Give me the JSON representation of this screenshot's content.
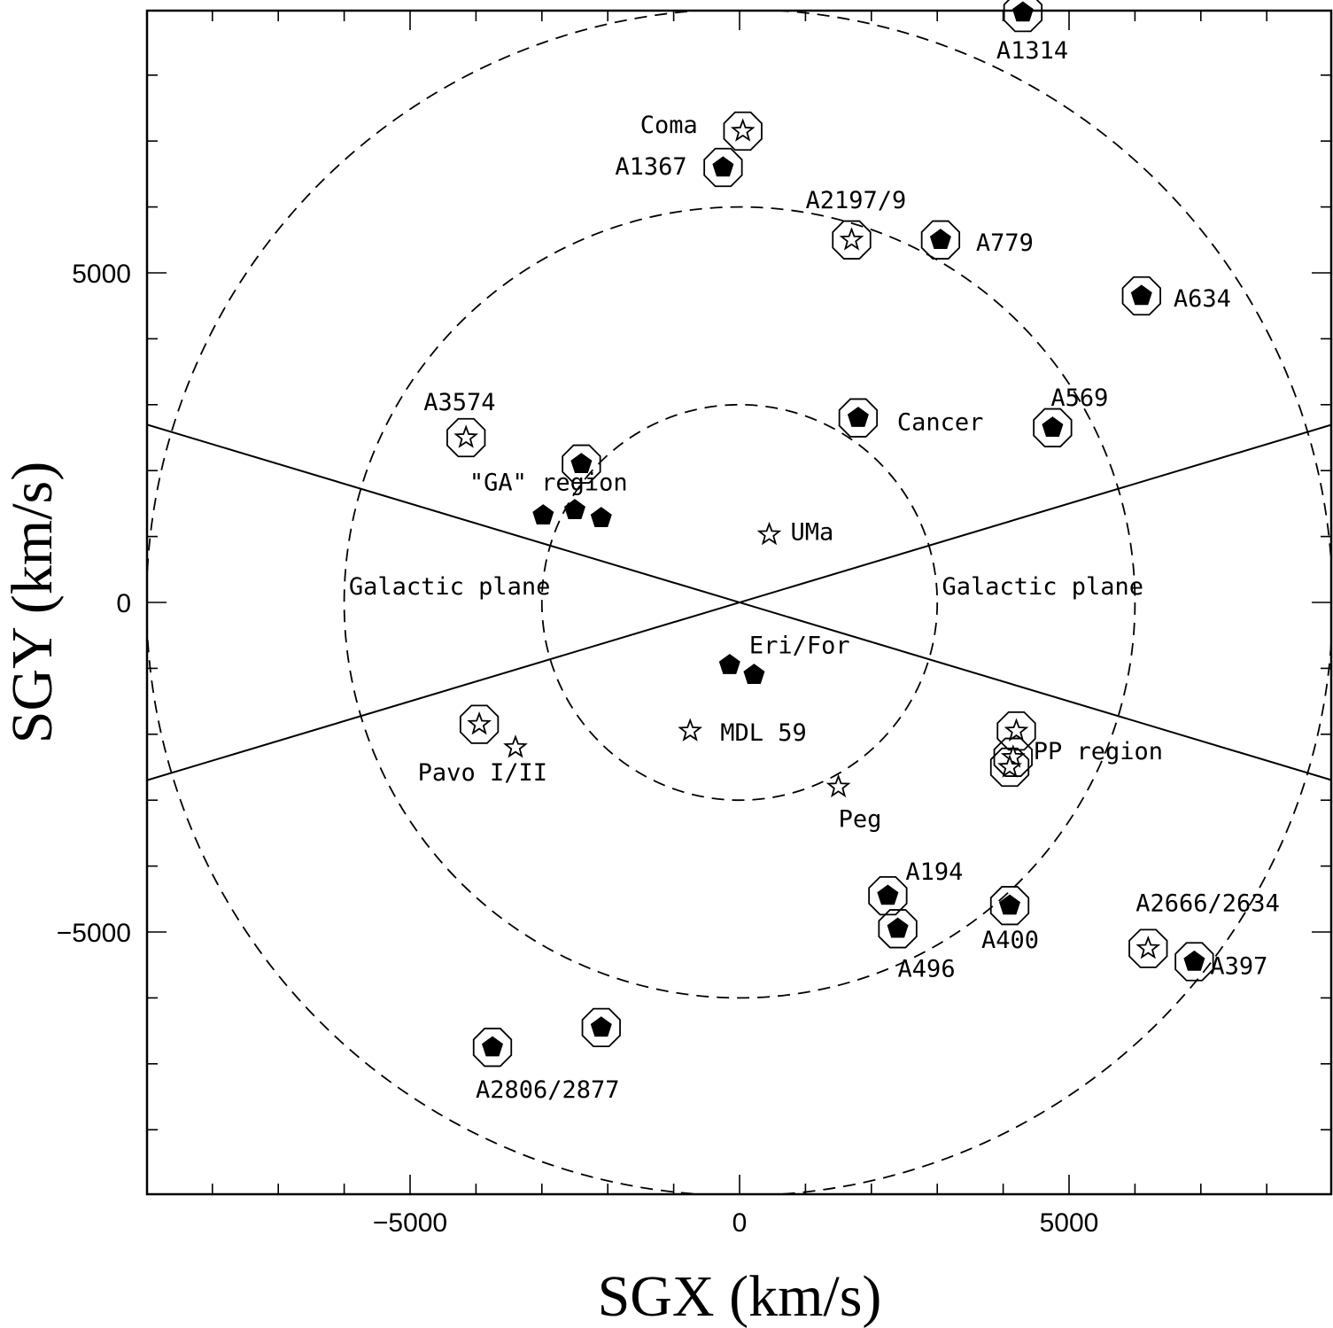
{
  "chart_data": {
    "type": "scatter",
    "xlabel": "SGX (km/s)",
    "ylabel": "SGY (km/s)",
    "xlim": [
      -9000,
      9000
    ],
    "ylim": [
      -9000,
      9000
    ],
    "xticks": [
      -5000,
      0,
      5000
    ],
    "yticks": [
      -5000,
      0,
      5000
    ],
    "xtick_labels": [
      "−5000",
      "0",
      "5000"
    ],
    "ytick_labels": [
      "−5000",
      "0",
      "5000"
    ],
    "grid": false,
    "rings_kms": [
      3000,
      6000,
      9000
    ],
    "galactic_plane_slope": 0.3,
    "annotations": [
      {
        "text": "Galactic plane",
        "x": -4400,
        "y": 120
      },
      {
        "text": "Galactic plane",
        "x": 4600,
        "y": 120
      },
      {
        "text": "\"GA\" region",
        "x": -2900,
        "y": 1700
      },
      {
        "text": "Pavo I/II",
        "x": -3900,
        "y": -2700
      }
    ],
    "series": [
      {
        "name": "filled",
        "points": [
          {
            "x": 4300,
            "y": 8950,
            "ring": true,
            "label": "A1314"
          },
          {
            "x": -250,
            "y": 6600,
            "ring": true,
            "label": "A1367"
          },
          {
            "x": 3050,
            "y": 5500,
            "ring": true,
            "label": "A779"
          },
          {
            "x": 6100,
            "y": 4650,
            "ring": true,
            "label": "A634"
          },
          {
            "x": 1800,
            "y": 2800,
            "ring": true,
            "label": "Cancer"
          },
          {
            "x": 4750,
            "y": 2650,
            "ring": true,
            "label": "A569"
          },
          {
            "x": -2400,
            "y": 2100,
            "ring": true,
            "label": ""
          },
          {
            "x": -2980,
            "y": 1320,
            "ring": false,
            "label": ""
          },
          {
            "x": -2500,
            "y": 1400,
            "ring": false,
            "label": ""
          },
          {
            "x": -2100,
            "y": 1280,
            "ring": false,
            "label": ""
          },
          {
            "x": -150,
            "y": -950,
            "ring": false,
            "label": "Eri/For"
          },
          {
            "x": 220,
            "y": -1100,
            "ring": false,
            "label": ""
          },
          {
            "x": 2250,
            "y": -4450,
            "ring": true,
            "label": "A194"
          },
          {
            "x": 2400,
            "y": -4950,
            "ring": true,
            "label": "A496"
          },
          {
            "x": 4100,
            "y": -4600,
            "ring": true,
            "label": "A400"
          },
          {
            "x": 6900,
            "y": -5450,
            "ring": true,
            "label": "A397"
          },
          {
            "x": -2100,
            "y": -6450,
            "ring": true,
            "label": ""
          },
          {
            "x": -3750,
            "y": -6750,
            "ring": true,
            "label": "A2806/2877"
          }
        ]
      },
      {
        "name": "open",
        "points": [
          {
            "x": 50,
            "y": 7150,
            "ring": true,
            "label": "Coma"
          },
          {
            "x": 1700,
            "y": 5500,
            "ring": true,
            "label": "A2197/9"
          },
          {
            "x": -4150,
            "y": 2500,
            "ring": true,
            "label": "A3574"
          },
          {
            "x": 450,
            "y": 1030,
            "ring": false,
            "label": "UMa"
          },
          {
            "x": -3950,
            "y": -1850,
            "ring": true,
            "label": ""
          },
          {
            "x": -3400,
            "y": -2200,
            "ring": false,
            "label": ""
          },
          {
            "x": -750,
            "y": -1950,
            "ring": false,
            "label": "MDL 59"
          },
          {
            "x": 1500,
            "y": -2800,
            "ring": false,
            "label": "Peg"
          },
          {
            "x": 4200,
            "y": -1950,
            "ring": true,
            "label": ""
          },
          {
            "x": 4150,
            "y": -2350,
            "ring": true,
            "label": "PP region"
          },
          {
            "x": 4100,
            "y": -2500,
            "ring": true,
            "label": ""
          },
          {
            "x": 6200,
            "y": -5250,
            "ring": true,
            "label": "A2666/2634"
          }
        ]
      }
    ]
  }
}
